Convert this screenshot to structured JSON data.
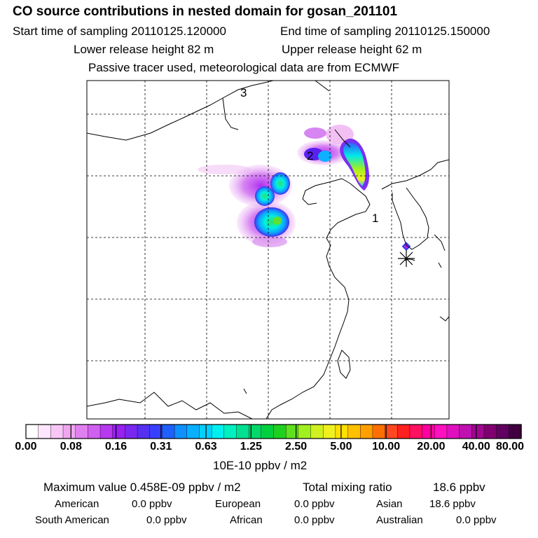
{
  "header": {
    "title": "CO  source contributions in nested domain for gosan_201101",
    "start_label": "Start time of sampling 20110125.120000",
    "end_label": "End time of sampling 20110125.150000",
    "lower_label": "Lower release height   82 m",
    "upper_label": "Upper release height   62 m",
    "note": "Passive tracer used, meteorological data are from ECMWF"
  },
  "map": {
    "region_labels": [
      "1",
      "2",
      "3"
    ],
    "receptor_marker": "asterisk-icon"
  },
  "colorbar": {
    "tick_labels": [
      "0.00",
      "0.08",
      "0.16",
      "0.31",
      "0.63",
      "1.25",
      "2.50",
      "5.00",
      "10.00",
      "20.00",
      "40.00",
      "80.00"
    ],
    "units": "10E-10 ppbv / m2",
    "colors": [
      "#ffffff",
      "#fde6fd",
      "#f7c6f7",
      "#efa6ef",
      "#e080f0",
      "#d060f0",
      "#b838f0",
      "#9820f0",
      "#7828f0",
      "#5530f0",
      "#3840ff",
      "#2060ff",
      "#1090ff",
      "#08b0ff",
      "#00d0ff",
      "#00f0f0",
      "#00f0c0",
      "#00e090",
      "#00d868",
      "#00d040",
      "#20d020",
      "#60e020",
      "#a0f020",
      "#d0f020",
      "#f0f020",
      "#ffe000",
      "#ffc000",
      "#ffa000",
      "#ff7000",
      "#ff4820",
      "#ff2020",
      "#ff1060",
      "#ff00a0",
      "#ff10c0",
      "#e010c0",
      "#c010b0",
      "#a00890",
      "#800070",
      "#600060",
      "#400040"
    ]
  },
  "footer": {
    "max_label": "Maximum value  0.458E-09 ppbv / m2",
    "total_label": "Total mixing ratio",
    "total_value": "18.6 ppbv",
    "contributions": [
      {
        "name": "American",
        "value": "0.0 ppbv"
      },
      {
        "name": "European",
        "value": "0.0 ppbv"
      },
      {
        "name": "Asian",
        "value": "18.6 ppbv"
      },
      {
        "name": "South American",
        "value": "0.0 ppbv"
      },
      {
        "name": "African",
        "value": "0.0 ppbv"
      },
      {
        "name": "Australian",
        "value": "0.0 ppbv"
      }
    ]
  }
}
